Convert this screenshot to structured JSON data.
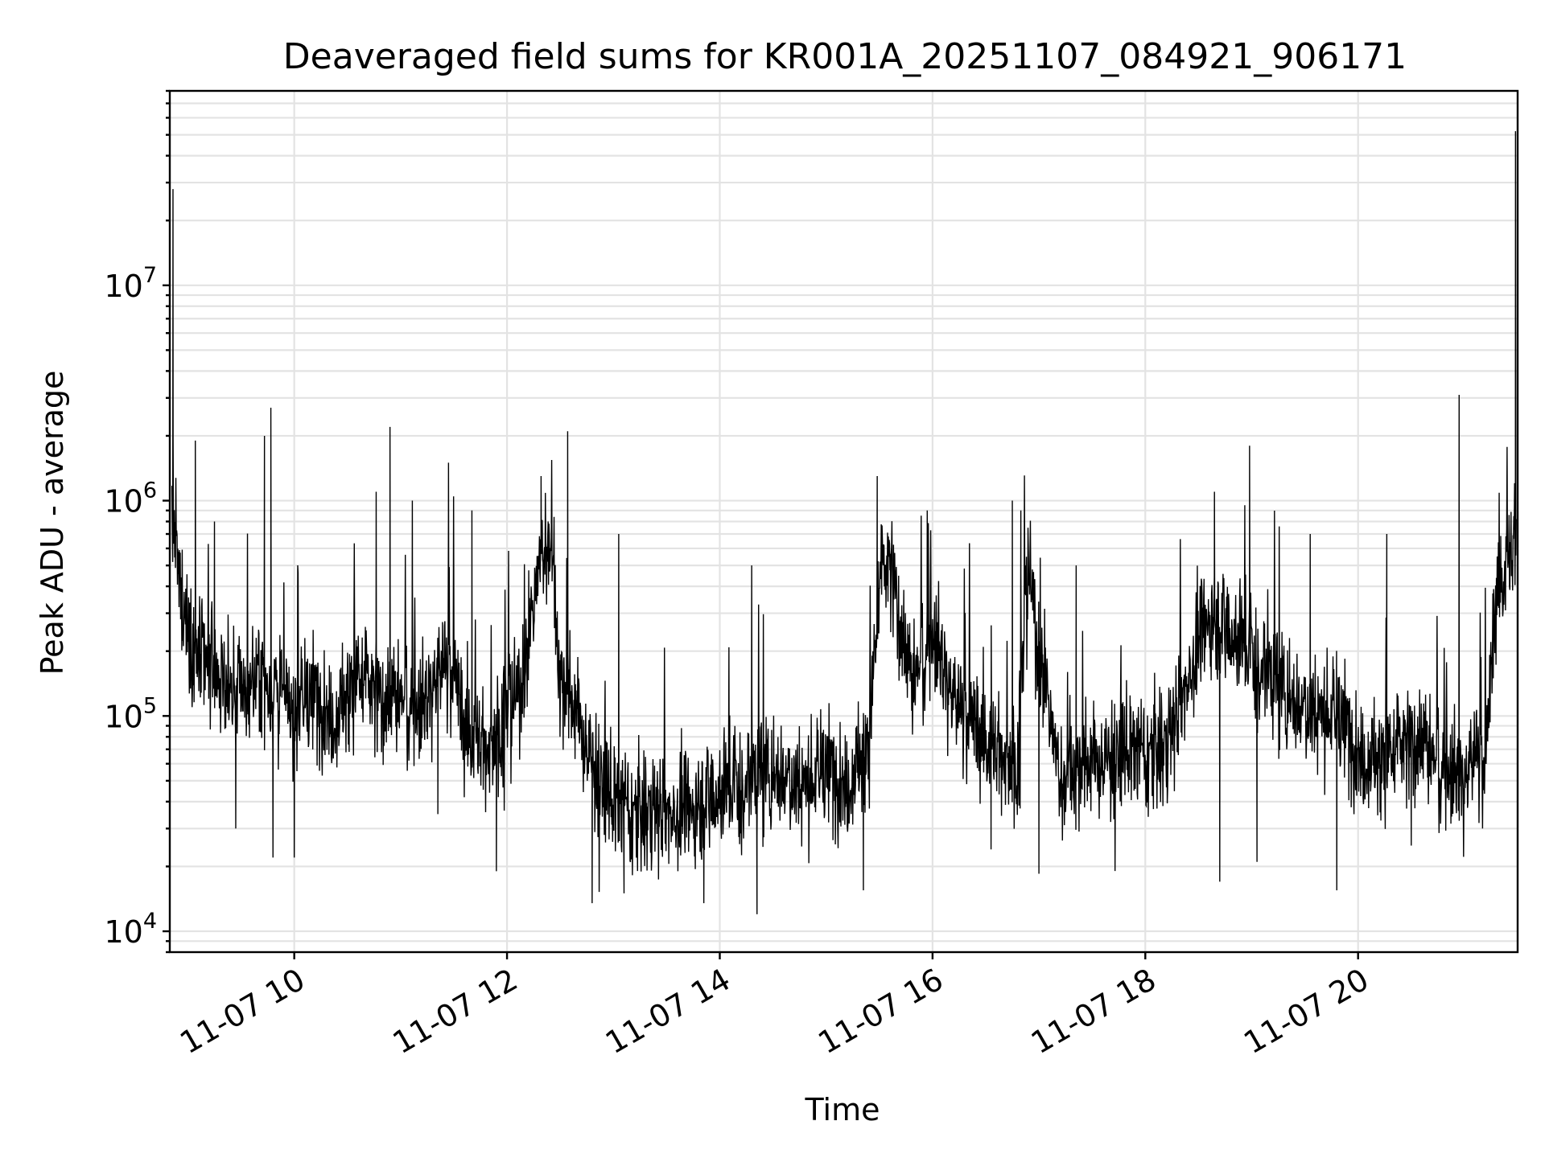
{
  "chart_data": {
    "type": "line",
    "title": "Deaveraged field sums for KR001A_20251107_084921_906171",
    "xlabel": "Time",
    "ylabel": "Peak ADU - average",
    "yscale": "log",
    "ylim": [
      8000,
      80000000
    ],
    "xlim_hours": [
      8.83,
      21.5
    ],
    "grid": true,
    "x_ticks": [
      {
        "hour": 10,
        "label": "11-07 10"
      },
      {
        "hour": 12,
        "label": "11-07 12"
      },
      {
        "hour": 14,
        "label": "11-07 14"
      },
      {
        "hour": 16,
        "label": "11-07 16"
      },
      {
        "hour": 18,
        "label": "11-07 18"
      },
      {
        "hour": 20,
        "label": "11-07 20"
      }
    ],
    "y_ticks": [
      {
        "value": 10000,
        "base": "10",
        "exp": "4"
      },
      {
        "value": 100000,
        "base": "10",
        "exp": "5"
      },
      {
        "value": 1000000,
        "base": "10",
        "exp": "6"
      },
      {
        "value": 10000000,
        "base": "10",
        "exp": "7"
      }
    ],
    "series": [
      {
        "name": "Peak ADU - average",
        "color": "#000000",
        "x_hours": [
          8.85,
          8.92,
          9.0,
          9.1,
          9.2,
          9.35,
          9.5,
          9.6,
          9.7,
          9.8,
          9.9,
          10.0,
          10.2,
          10.4,
          10.6,
          10.8,
          11.0,
          11.2,
          11.4,
          11.5,
          11.6,
          11.8,
          12.0,
          12.1,
          12.2,
          12.3,
          12.4,
          12.5,
          12.6,
          12.8,
          13.0,
          13.2,
          13.4,
          13.6,
          13.8,
          14.0,
          14.2,
          14.4,
          14.6,
          14.8,
          15.0,
          15.2,
          15.4,
          15.5,
          15.6,
          15.8,
          16.0,
          16.2,
          16.4,
          16.6,
          16.8,
          16.9,
          17.0,
          17.2,
          17.4,
          17.6,
          17.8,
          18.0,
          18.2,
          18.4,
          18.6,
          18.8,
          19.0,
          19.2,
          19.4,
          19.6,
          19.8,
          20.0,
          20.2,
          20.4,
          20.6,
          20.8,
          21.0,
          21.1,
          21.2,
          21.3,
          21.4,
          21.5
        ],
        "values": [
          900000,
          400000,
          250000,
          180000,
          170000,
          140000,
          130000,
          140000,
          160000,
          130000,
          120000,
          110000,
          120000,
          100000,
          150000,
          120000,
          130000,
          110000,
          180000,
          160000,
          90000,
          70000,
          100000,
          130000,
          200000,
          500000,
          700000,
          150000,
          120000,
          60000,
          40000,
          35000,
          38000,
          35000,
          40000,
          45000,
          50000,
          55000,
          55000,
          50000,
          55000,
          50000,
          70000,
          400000,
          500000,
          150000,
          250000,
          120000,
          90000,
          70000,
          60000,
          500000,
          200000,
          50000,
          60000,
          60000,
          70000,
          65000,
          75000,
          150000,
          300000,
          250000,
          200000,
          150000,
          120000,
          110000,
          100000,
          70000,
          60000,
          70000,
          80000,
          60000,
          50000,
          70000,
          60000,
          400000,
          500000,
          700000
        ],
        "spike_hours": [
          8.86,
          9.07,
          9.25,
          9.72,
          9.78,
          10.77,
          10.9,
          11.11,
          11.45,
          11.67,
          12.32,
          12.57,
          13.05,
          14.3,
          15.48,
          15.95,
          16.75,
          16.83,
          17.35,
          18.65,
          18.98,
          19.55,
          20.27,
          20.95,
          21.48
        ],
        "spike_values": [
          28000000,
          1900000,
          800000,
          2000000,
          2700000,
          1100000,
          2200000,
          1000000,
          1500000,
          900000,
          1300000,
          2100000,
          700000,
          500000,
          1300000,
          900000,
          1000000,
          900000,
          500000,
          1100000,
          1800000,
          700000,
          700000,
          3100000,
          52000000
        ],
        "dip_hours": [
          9.45,
          9.8,
          10.0,
          11.35,
          11.9,
          12.8,
          13.1,
          13.85,
          14.35,
          15.35,
          16.55,
          17.0,
          18.7,
          19.05,
          19.8,
          20.5
        ],
        "dip_values": [
          30000,
          22000,
          22000,
          35000,
          19000,
          13500,
          15000,
          13500,
          12000,
          15500,
          24000,
          18500,
          17000,
          21000,
          15500,
          25000
        ]
      }
    ]
  }
}
